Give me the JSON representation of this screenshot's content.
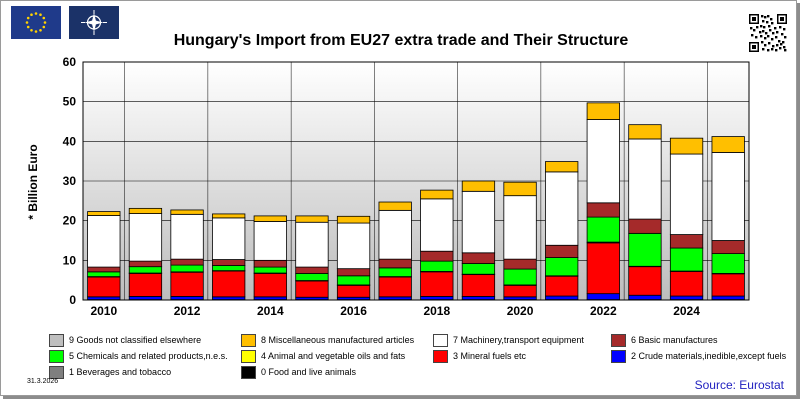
{
  "header": {
    "title": "Hungary's Import from EU27 extra trade and Their Structure",
    "left_logos": [
      "eu-flag",
      "nato-flag"
    ],
    "right_logo": "qr-code"
  },
  "footer": {
    "date": "31.3.2026",
    "source": "Source: Eurostat"
  },
  "chart_data": {
    "type": "bar",
    "stacked": true,
    "title": "Hungary's Import from EU27 extra trade and Their Structure",
    "xlabel": "",
    "ylabel": "* Billion Euro",
    "ylim": [
      0,
      60
    ],
    "yticks": [
      0,
      10,
      20,
      30,
      40,
      50,
      60
    ],
    "grid": true,
    "background": "vertical gradient, light to grey",
    "categories": [
      "2010",
      "2011",
      "2012",
      "2013",
      "2014",
      "2015",
      "2016",
      "2017",
      "2018",
      "2019",
      "2020",
      "2021",
      "2022",
      "2023",
      "2024",
      "2025"
    ],
    "x_tick_labels": [
      "2010",
      "2012",
      "2014",
      "2016",
      "2018",
      "2020",
      "2022",
      "2024"
    ],
    "legend_position": "bottom",
    "series": [
      {
        "name": "0 Food and live animals",
        "color": "#000000",
        "values": [
          0.1,
          0.1,
          0.1,
          0.1,
          0.1,
          0.1,
          0.1,
          0.1,
          0.1,
          0.1,
          0.1,
          0.1,
          0.1,
          0.1,
          0.1,
          0.1
        ]
      },
      {
        "name": "1 Beverages and tobacco",
        "color": "#7f7f7f",
        "values": [
          0,
          0,
          0,
          0,
          0,
          0,
          0,
          0,
          0,
          0,
          0,
          0,
          0,
          0,
          0,
          0
        ]
      },
      {
        "name": "2 Crude materials,inedible,except fuels",
        "color": "#0000ff",
        "values": [
          0.7,
          0.8,
          0.8,
          0.7,
          0.7,
          0.6,
          0.6,
          0.7,
          0.8,
          0.8,
          0.7,
          0.9,
          1.5,
          1.1,
          0.9,
          0.9
        ]
      },
      {
        "name": "3 Mineral fuels etc",
        "color": "#ff0000",
        "values": [
          5.0,
          5.8,
          6.1,
          6.5,
          5.9,
          4.1,
          3.0,
          5.0,
          6.2,
          5.5,
          2.9,
          5.0,
          12.8,
          7.2,
          6.2,
          5.6
        ]
      },
      {
        "name": "4 Animal and vegetable oils and fats",
        "color": "#ffff00",
        "values": [
          0.1,
          0.1,
          0.1,
          0.1,
          0.1,
          0.1,
          0.1,
          0.1,
          0.1,
          0.1,
          0.1,
          0.1,
          0.2,
          0.1,
          0.1,
          0.1
        ]
      },
      {
        "name": "5 Chemicals and related products,n.e.s.",
        "color": "#00ff00",
        "values": [
          1.2,
          1.6,
          1.7,
          1.3,
          1.5,
          1.8,
          2.3,
          2.2,
          2.6,
          2.7,
          4.0,
          4.6,
          6.3,
          8.3,
          5.8,
          5.0
        ]
      },
      {
        "name": "6 Basic manufactures",
        "color": "#a52a2a",
        "values": [
          1.2,
          1.4,
          1.5,
          1.5,
          1.7,
          1.6,
          1.8,
          2.2,
          2.5,
          2.7,
          2.5,
          3.1,
          3.6,
          3.6,
          3.4,
          3.3
        ]
      },
      {
        "name": "7 Machinery,transport equipment",
        "color": "#ffffff",
        "values": [
          13.0,
          12.0,
          11.3,
          10.5,
          9.8,
          11.3,
          11.5,
          12.3,
          13.2,
          15.5,
          16.0,
          18.5,
          21.0,
          20.2,
          20.3,
          22.2
        ]
      },
      {
        "name": "8 Miscellaneous manufactured articles",
        "color": "#ffbf00",
        "values": [
          1.0,
          1.3,
          1.1,
          1.0,
          1.4,
          1.6,
          1.7,
          2.1,
          2.2,
          2.6,
          3.4,
          2.6,
          4.2,
          3.6,
          4.0,
          4.0
        ]
      },
      {
        "name": "9 Goods not classified elsewhere",
        "color": "#bfbfbf",
        "values": [
          0,
          0,
          0,
          0,
          0,
          0,
          0,
          0,
          0,
          0,
          0,
          0,
          0,
          0,
          0,
          0
        ]
      }
    ],
    "legend_order": [
      9,
      8,
      7,
      6,
      5,
      4,
      3,
      2,
      1,
      0
    ]
  }
}
